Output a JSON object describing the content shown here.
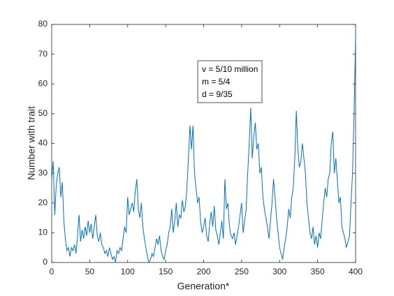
{
  "chart_data": {
    "type": "line",
    "xlabel": "Generation*",
    "ylabel": "Number with trait",
    "annotation": [
      "v = 5/10 million",
      "m = 5/4",
      "d = 9/35"
    ],
    "xlim": [
      0,
      400
    ],
    "xticks": [
      0,
      50,
      100,
      150,
      200,
      250,
      300,
      350,
      400
    ],
    "ylim": [
      0,
      80
    ],
    "yticks": [
      0,
      10,
      20,
      30,
      40,
      50,
      60,
      70,
      80
    ],
    "x": [
      0,
      2,
      4,
      6,
      8,
      10,
      12,
      14,
      16,
      18,
      20,
      22,
      24,
      26,
      28,
      30,
      32,
      34,
      36,
      38,
      40,
      42,
      44,
      46,
      48,
      50,
      52,
      54,
      56,
      58,
      60,
      62,
      64,
      66,
      68,
      70,
      72,
      74,
      76,
      78,
      80,
      82,
      84,
      86,
      88,
      90,
      92,
      94,
      96,
      98,
      100,
      102,
      104,
      106,
      108,
      110,
      112,
      114,
      116,
      118,
      120,
      122,
      124,
      126,
      128,
      130,
      132,
      134,
      136,
      138,
      140,
      142,
      144,
      146,
      148,
      150,
      152,
      154,
      156,
      158,
      160,
      162,
      164,
      166,
      168,
      170,
      172,
      174,
      176,
      178,
      180,
      182,
      184,
      186,
      188,
      190,
      192,
      194,
      196,
      198,
      200,
      202,
      204,
      206,
      208,
      210,
      212,
      214,
      216,
      218,
      220,
      222,
      224,
      226,
      228,
      230,
      232,
      234,
      236,
      238,
      240,
      242,
      244,
      246,
      248,
      250,
      252,
      254,
      256,
      258,
      260,
      262,
      264,
      266,
      268,
      270,
      272,
      274,
      276,
      278,
      280,
      282,
      284,
      286,
      288,
      290,
      292,
      294,
      296,
      298,
      300,
      302,
      304,
      306,
      308,
      310,
      312,
      314,
      316,
      318,
      320,
      322,
      324,
      326,
      328,
      330,
      332,
      334,
      336,
      338,
      340,
      342,
      344,
      346,
      348,
      350,
      352,
      354,
      356,
      358,
      360,
      362,
      364,
      366,
      368,
      370,
      372,
      374,
      376,
      378,
      380,
      382,
      384,
      386,
      388,
      390,
      392,
      394,
      396,
      398,
      400
    ],
    "series": [
      {
        "color": "#0072bd",
        "values": [
          28,
          34,
          16,
          26,
          30,
          32,
          22,
          27,
          14,
          8,
          4,
          5,
          2,
          5,
          4,
          6,
          3,
          9,
          16,
          7,
          11,
          8,
          12,
          9,
          14,
          10,
          13,
          8,
          12,
          16,
          9,
          7,
          10,
          6,
          5,
          3,
          4,
          2,
          5,
          3,
          1,
          2,
          0,
          4,
          3,
          5,
          4,
          8,
          12,
          10,
          22,
          16,
          18,
          20,
          17,
          24,
          28,
          18,
          15,
          20,
          12,
          8,
          5,
          2,
          0,
          1,
          3,
          2,
          5,
          8,
          6,
          9,
          4,
          2,
          1,
          4,
          6,
          10,
          12,
          18,
          10,
          14,
          20,
          12,
          16,
          15,
          21,
          17,
          19,
          25,
          35,
          46,
          38,
          46,
          30,
          25,
          20,
          22,
          14,
          10,
          12,
          15,
          9,
          7,
          13,
          17,
          12,
          19,
          11,
          9,
          6,
          10,
          14,
          8,
          28,
          18,
          20,
          12,
          9,
          8,
          10,
          6,
          9,
          12,
          16,
          20,
          10,
          14,
          18,
          30,
          40,
          52,
          35,
          42,
          47,
          38,
          40,
          30,
          32,
          22,
          18,
          15,
          12,
          8,
          14,
          20,
          28,
          22,
          15,
          10,
          5,
          3,
          1,
          5,
          8,
          12,
          18,
          15,
          22,
          25,
          35,
          51,
          38,
          32,
          34,
          40,
          35,
          30,
          20,
          15,
          10,
          8,
          12,
          6,
          9,
          5,
          10,
          8,
          14,
          20,
          25,
          22,
          28,
          30,
          40,
          44,
          30,
          35,
          28,
          20,
          22,
          12,
          10,
          8,
          5,
          7,
          9,
          20,
          30,
          50,
          76
        ]
      }
    ]
  }
}
